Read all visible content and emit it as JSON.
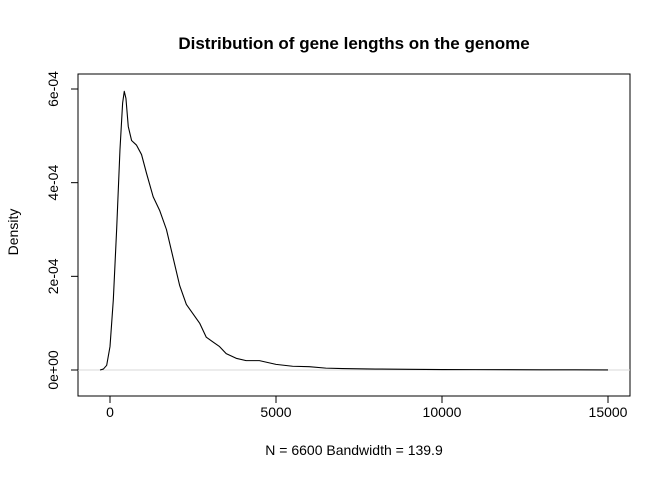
{
  "chart_data": {
    "type": "line",
    "title": "Distribution of gene lengths on the genome",
    "xlabel": "N = 6600   Bandwidth = 139.9",
    "ylabel": "Density",
    "xlim": [
      -300,
      15200
    ],
    "ylim": [
      0,
      0.0006
    ],
    "x_ticks": [
      0,
      5000,
      10000,
      15000
    ],
    "x_tick_labels": [
      "0",
      "5000",
      "10000",
      "15000"
    ],
    "y_ticks": [
      0,
      0.0002,
      0.0004,
      0.0006
    ],
    "y_tick_labels": [
      "0e+00",
      "2e-04",
      "4e-04",
      "6e-04"
    ],
    "grid": false,
    "series": [
      {
        "points": [
          [
            -300,
            0
          ],
          [
            -200,
            2e-06
          ],
          [
            -100,
            1e-05
          ],
          [
            0,
            5e-05
          ],
          [
            100,
            0.00015
          ],
          [
            200,
            0.0003
          ],
          [
            300,
            0.00047
          ],
          [
            380,
            0.00057
          ],
          [
            430,
            0.000595
          ],
          [
            480,
            0.00058
          ],
          [
            550,
            0.00052
          ],
          [
            650,
            0.00049
          ],
          [
            800,
            0.00048
          ],
          [
            950,
            0.00046
          ],
          [
            1100,
            0.00042
          ],
          [
            1300,
            0.00037
          ],
          [
            1500,
            0.00034
          ],
          [
            1700,
            0.0003
          ],
          [
            1900,
            0.00024
          ],
          [
            2100,
            0.00018
          ],
          [
            2300,
            0.00014
          ],
          [
            2500,
            0.00012
          ],
          [
            2700,
            0.0001
          ],
          [
            2900,
            7e-05
          ],
          [
            3100,
            6e-05
          ],
          [
            3300,
            5e-05
          ],
          [
            3500,
            3.5e-05
          ],
          [
            3800,
            2.5e-05
          ],
          [
            4100,
            2e-05
          ],
          [
            4500,
            2e-05
          ],
          [
            5000,
            1.2e-05
          ],
          [
            5500,
            8e-06
          ],
          [
            6000,
            7e-06
          ],
          [
            6500,
            4e-06
          ],
          [
            7000,
            3e-06
          ],
          [
            8000,
            2e-06
          ],
          [
            9000,
            1.5e-06
          ],
          [
            10000,
            1e-06
          ],
          [
            11000,
            8e-07
          ],
          [
            12000,
            6e-07
          ],
          [
            13000,
            4e-07
          ],
          [
            14000,
            3e-07
          ],
          [
            15000,
            2e-07
          ]
        ]
      }
    ]
  }
}
